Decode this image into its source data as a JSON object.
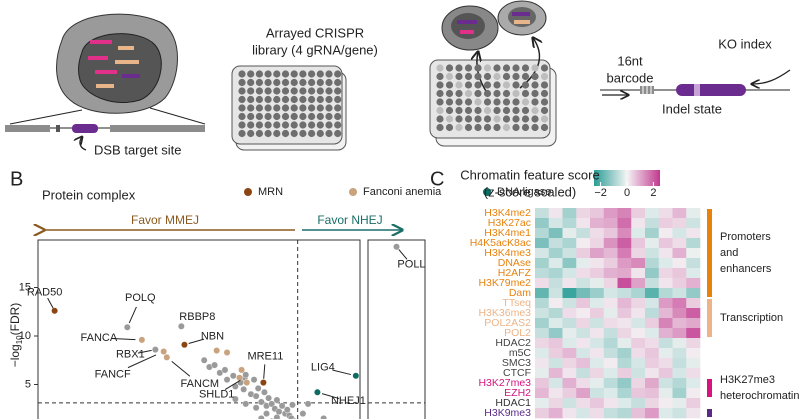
{
  "panel_a": {
    "library_title": [
      "Arrayed CRISPR",
      "library (4 gRNA/gene)"
    ],
    "target_label": "DSB target site",
    "barcode_label": [
      "16nt",
      "barcode"
    ],
    "index_label": "KO index",
    "indel_label": "Indel state"
  },
  "panel_labels": [
    "B",
    "C"
  ],
  "chart_data": [
    {
      "type": "scatter",
      "legend_title": "Protein complex",
      "y_label": [
        "−log",
        "10",
        "(FDR)"
      ],
      "arrows": [
        {
          "text": "Favor MMEJ",
          "color": "#8b5a1e"
        },
        {
          "text": "Favor NHEJ",
          "color": "#1a6e68"
        }
      ],
      "xlim": [
        -2.5,
        0.6
      ],
      "x2lim": [
        1.2,
        1.8
      ],
      "ylim": [
        0,
        20
      ],
      "yticks": [
        5,
        10,
        15
      ],
      "vline": 0,
      "hline": 3.1,
      "series": [
        {
          "name": "MRN",
          "color": "#8b4513",
          "x": [
            -2.34,
            -1.09,
            -0.33
          ],
          "values": [
            12.6,
            9.1,
            5.2
          ],
          "labels": [
            "RAD50",
            "NBN",
            "MRE11"
          ]
        },
        {
          "name": "Fanconi anemia",
          "color": "#c9a27e",
          "x": [
            -1.5,
            -1.29,
            -1.26,
            -0.78,
            -0.68,
            -0.54,
            -0.56,
            -0.49
          ],
          "values": [
            9.6,
            8.4,
            7.8,
            8.5,
            8.3,
            6.5,
            5.7,
            5.2
          ],
          "labels": [
            "FANCA",
            "FANCF",
            "FANCM",
            null,
            null,
            null,
            null,
            null
          ]
        },
        {
          "name": "DNA ligase",
          "color": "#0d6b62",
          "x": [
            0.56,
            0.19
          ],
          "values": [
            5.9,
            4.2
          ],
          "labels": [
            "LIG4",
            "NHEJ1"
          ]
        }
      ],
      "other": {
        "color": "#9a9a9a",
        "x": [
          -1.64,
          -1.12,
          -1.37,
          -0.51,
          1.5,
          -0.9,
          -0.85,
          -0.8,
          -0.75,
          -0.7,
          -0.68,
          -0.62,
          -0.6,
          -0.55,
          -0.52,
          -0.5,
          -0.45,
          -0.42,
          -0.4,
          -0.38,
          -0.35,
          -0.32,
          -0.3,
          -0.28,
          -0.25,
          -0.22,
          -0.2,
          -0.18,
          -0.15,
          -0.12,
          -0.1,
          -0.08,
          -0.06,
          -0.05,
          -0.03,
          -0.02,
          -0.6,
          -0.5,
          -0.4,
          -0.3,
          -0.2,
          -0.1,
          -0.35,
          -0.25,
          -0.15,
          0.02,
          0.05,
          0.1,
          0.15,
          0.25
        ],
        "values": [
          10.9,
          11.0,
          8.6,
          5.7,
          19.2,
          7.5,
          6.8,
          7.0,
          6.2,
          6.5,
          5.5,
          5.9,
          4.8,
          5.2,
          4.5,
          6.0,
          4.0,
          5.5,
          3.8,
          4.6,
          3.2,
          4.2,
          2.8,
          3.6,
          3.0,
          2.5,
          3.4,
          2.2,
          2.8,
          2.0,
          2.4,
          1.8,
          1.5,
          2.9,
          1.2,
          0.8,
          3.5,
          3.0,
          2.6,
          2.0,
          1.6,
          1.0,
          1.5,
          1.2,
          0.6,
          1.0,
          2.0,
          3.0,
          0.5,
          1.5
        ],
        "labels": [
          "POLQ",
          "RBBP8",
          "RBX1",
          "SHLD1",
          "POLL",
          null,
          null,
          null,
          null,
          null,
          null,
          null,
          null,
          null,
          null,
          null,
          null,
          null,
          null,
          null,
          null,
          null,
          null,
          null,
          null,
          null,
          null,
          null,
          null,
          null,
          null,
          null,
          null,
          null,
          null,
          null,
          null,
          null,
          null,
          null,
          null,
          null,
          null,
          null,
          null,
          null,
          null,
          null,
          null,
          null
        ]
      }
    },
    {
      "type": "heatmap",
      "colorbar": {
        "title": [
          "Chromatin feature score",
          "(z-score scaled)"
        ],
        "lim": [
          -2.5,
          2.5
        ],
        "ticks": [
          {
            "value": -2,
            "label": "−2"
          },
          0,
          2
        ],
        "colors": [
          "#2a9d96",
          "#f4f4f4",
          "#c2388f"
        ]
      },
      "rows": [
        "H3K4me2",
        "H3K27ac",
        "H3K4me1",
        "H4K5acK8ac",
        "H3K4me3",
        "DNAse",
        "H2AFZ",
        "H3K79me2",
        "Dam",
        "TTseq",
        "H3K36me3",
        "POL2AS2",
        "POL2",
        "HDAC2",
        "m5C",
        "SMC3",
        "CTCF",
        "H3K27me3",
        "EZH2",
        "HDAC1",
        "H3K9me3"
      ],
      "row_colors": [
        "#e8820c",
        "#e8820c",
        "#e8820c",
        "#e8820c",
        "#e8820c",
        "#e8820c",
        "#e8820c",
        "#e8820c",
        "#e8820c",
        "#ecb488",
        "#ecb488",
        "#ecb488",
        "#ecb488",
        "#444444",
        "#444444",
        "#444444",
        "#444444",
        "#d6147f",
        "#d6147f",
        "#333333",
        "#5b2a86"
      ],
      "groups": [
        {
          "lines": [
            "Promoters",
            "and",
            "enhancers"
          ],
          "color": "#e8820c",
          "span": [
            0,
            8
          ]
        },
        {
          "lines": [
            "Transcription"
          ],
          "color": "#ecb488",
          "span": [
            9,
            12
          ]
        },
        {
          "lines": [
            "H3K27me3",
            "heterochromatin"
          ],
          "color": "#d6147f",
          "span": [
            17,
            18
          ]
        },
        {
          "color": "#5b2a86",
          "span": [
            20,
            20
          ]
        }
      ],
      "values": [
        [
          -0.6,
          0.2,
          -1.0,
          0.4,
          0.6,
          1.2,
          1.5,
          0.5,
          -0.3,
          0.3,
          0.8,
          -0.2
        ],
        [
          -1.2,
          -0.4,
          -0.8,
          0.2,
          0.9,
          1.0,
          1.8,
          0.2,
          -0.6,
          0.5,
          0.4,
          -0.5
        ],
        [
          -0.8,
          -1.5,
          -0.2,
          -0.6,
          0.3,
          0.6,
          1.4,
          -0.3,
          -1.0,
          0.1,
          -0.4,
          0.2
        ],
        [
          -1.5,
          -0.6,
          -0.9,
          0.1,
          0.4,
          1.3,
          2.0,
          0.6,
          -0.2,
          0.6,
          0.3,
          -0.8
        ],
        [
          -0.4,
          -1.0,
          -0.5,
          0.5,
          1.1,
          0.8,
          1.6,
          0.4,
          -0.5,
          0.2,
          0.9,
          -0.1
        ],
        [
          -1.0,
          -0.3,
          -1.3,
          -0.2,
          0.2,
          0.5,
          1.2,
          1.4,
          -0.8,
          -0.3,
          0.1,
          -0.6
        ],
        [
          -0.7,
          -0.9,
          -0.4,
          0.3,
          0.5,
          0.9,
          1.0,
          0.2,
          -1.2,
          0.4,
          0.6,
          -0.3
        ],
        [
          0.3,
          -0.6,
          0.2,
          -0.5,
          -0.2,
          0.4,
          2.2,
          1.1,
          -0.6,
          0.2,
          0.5,
          0.9
        ],
        [
          -1.8,
          -0.5,
          -2.3,
          -1.6,
          -1.1,
          -0.4,
          -0.6,
          -0.9,
          -1.9,
          -0.8,
          -0.5,
          -1.2
        ],
        [
          -0.8,
          0.1,
          -0.5,
          0.6,
          -0.3,
          0.2,
          0.8,
          0.4,
          -0.4,
          1.2,
          1.6,
          0.5
        ],
        [
          -0.5,
          -0.8,
          0.3,
          0.1,
          0.5,
          -0.2,
          0.6,
          0.2,
          -0.7,
          0.8,
          1.4,
          2.0
        ],
        [
          -1.0,
          -0.3,
          -0.6,
          0.4,
          -0.5,
          0.3,
          0.2,
          -0.4,
          0.5,
          1.5,
          0.8,
          1.0
        ],
        [
          -0.6,
          -1.2,
          -0.2,
          -0.5,
          0.2,
          -0.6,
          0.4,
          0.1,
          -0.3,
          0.9,
          1.2,
          2.1
        ],
        [
          0.4,
          0.6,
          -0.3,
          0.2,
          -0.4,
          -0.8,
          -0.2,
          0.5,
          0.3,
          -0.6,
          -0.2,
          0.4
        ],
        [
          -0.3,
          0.5,
          0.8,
          -0.4,
          0.2,
          -0.6,
          -1.0,
          0.3,
          0.6,
          -0.2,
          -0.5,
          0.1
        ],
        [
          0.2,
          -0.5,
          0.4,
          0.7,
          -0.3,
          0.1,
          -0.8,
          -0.4,
          0.5,
          0.3,
          -0.6,
          -0.2
        ],
        [
          -0.2,
          0.8,
          0.2,
          -0.6,
          0.4,
          -0.3,
          0.5,
          -0.5,
          0.2,
          0.6,
          -0.4,
          0.3
        ],
        [
          0.6,
          -0.4,
          0.9,
          0.3,
          -0.2,
          -0.7,
          -1.2,
          0.4,
          1.0,
          -0.5,
          -0.8,
          -0.3
        ],
        [
          0.8,
          0.2,
          0.5,
          1.1,
          -0.5,
          -0.3,
          -0.9,
          0.6,
          0.7,
          -0.2,
          -1.0,
          0.1
        ],
        [
          -0.2,
          0.4,
          -0.5,
          0.3,
          0.6,
          0.2,
          -0.3,
          -0.6,
          0.4,
          0.1,
          -0.2,
          0.5
        ],
        [
          0.5,
          0.9,
          0.2,
          -0.4,
          0.3,
          -0.6,
          -0.8,
          0.7,
          1.2,
          -0.3,
          -0.5,
          0.2
        ]
      ]
    }
  ]
}
